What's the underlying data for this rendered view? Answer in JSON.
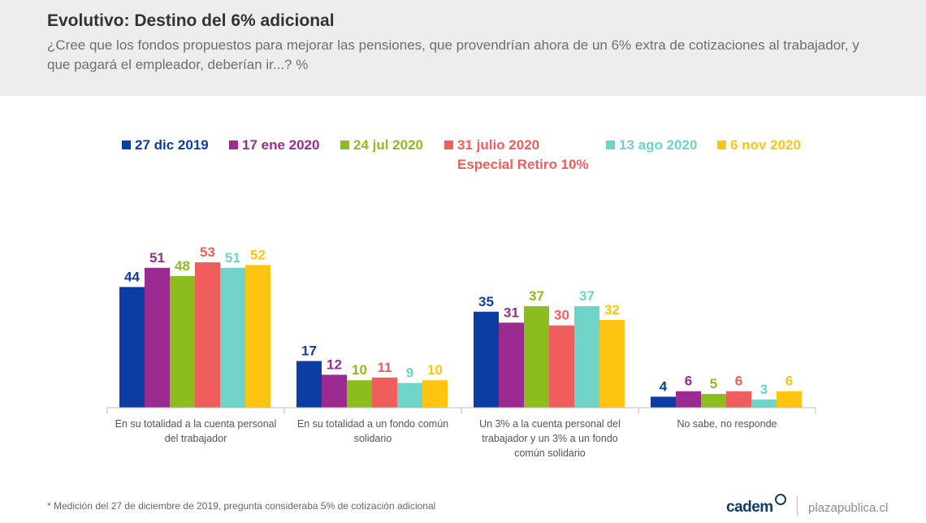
{
  "header": {
    "title": "Evolutivo: Destino del 6% adicional",
    "subtitle": "¿Cree que los fondos propuestos para mejorar las pensiones, que provendrían ahora de un 6% extra de cotizaciones al trabajador, y que pagará el empleador, deberían ir...? %"
  },
  "legend": {
    "items": [
      {
        "label": "27 dic 2019",
        "color": "#0b3da2"
      },
      {
        "label": "17 ene 2020",
        "color": "#9a2b91"
      },
      {
        "label": "24 jul 2020",
        "color": "#8cbd1e"
      },
      {
        "label": "31 julio 2020",
        "color": "#ef5d5d"
      },
      {
        "label": "13 ago 2020",
        "color": "#6fd3c8"
      },
      {
        "label": "6 nov 2020",
        "color": "#fdc412"
      }
    ],
    "note": "Especial Retiro 10%"
  },
  "chart_data": {
    "type": "bar",
    "categories": [
      "En su totalidad a la cuenta personal del trabajador",
      "En su totalidad a un fondo común solidario",
      "Un 3% a la cuenta personal del trabajador y un 3% a un fondo común solidario",
      "No sabe, no responde"
    ],
    "series": [
      {
        "name": "27 dic 2019",
        "color": "#0b3da2",
        "values": [
          44,
          17,
          35,
          4
        ]
      },
      {
        "name": "17 ene 2020",
        "color": "#9a2b91",
        "values": [
          51,
          12,
          31,
          6
        ]
      },
      {
        "name": "24 jul 2020",
        "color": "#8cbd1e",
        "values": [
          48,
          10,
          37,
          5
        ]
      },
      {
        "name": "31 julio 2020",
        "color": "#ef5d5d",
        "values": [
          53,
          11,
          30,
          6
        ]
      },
      {
        "name": "13 ago 2020",
        "color": "#6fd3c8",
        "values": [
          51,
          9,
          37,
          3
        ]
      },
      {
        "name": "6 nov 2020",
        "color": "#fdc412",
        "values": [
          52,
          10,
          32,
          6
        ]
      }
    ],
    "ylim": [
      0,
      53
    ],
    "grid": false,
    "legend_position": "top"
  },
  "footnote": "* Medición del 27 de diciembre de 2019, pregunta consideraba 5% de cotización adicional",
  "brand": {
    "cadem": "cadem",
    "plaza": "plazapublica.cl"
  }
}
